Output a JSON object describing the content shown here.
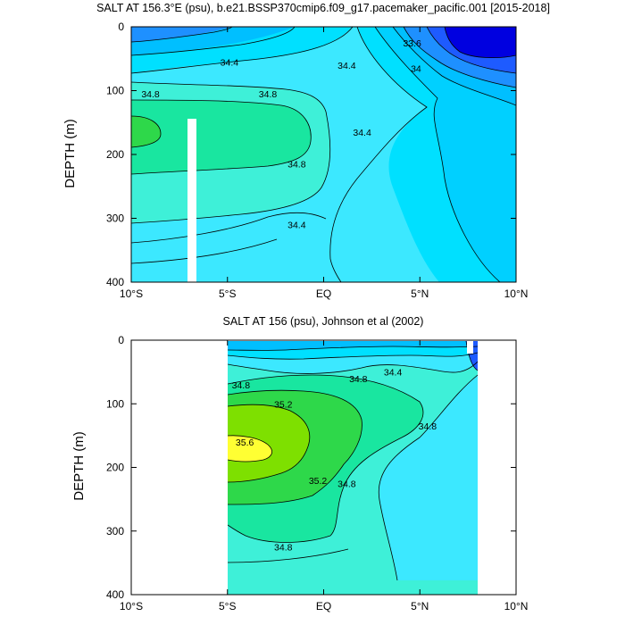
{
  "chart_data": [
    {
      "type": "contour",
      "title": "SALT AT 156.3°E (psu), b.e21.BSSP370cmip6.f09_g17.pacemaker_pacific.001 [2015-2018]",
      "ylabel": "DEPTH (m)",
      "xlim": [
        -10,
        10
      ],
      "ylim": [
        400,
        0
      ],
      "x_ticks": [
        -10,
        -5,
        0,
        5,
        10
      ],
      "x_tick_labels": [
        "10°S",
        "5°S",
        "EQ",
        "5°N",
        "10°N"
      ],
      "y_ticks": [
        0,
        100,
        200,
        300,
        400
      ],
      "y_tick_labels": [
        "0",
        "100",
        "200",
        "300",
        "400"
      ],
      "contour_interval": 0.2,
      "contour_labels": [
        {
          "text": "34.4",
          "lat": -4.9,
          "depth": 55
        },
        {
          "text": "34.4",
          "lat": 1.2,
          "depth": 60
        },
        {
          "text": "33.6",
          "lat": 4.6,
          "depth": 25
        },
        {
          "text": "34",
          "lat": 4.8,
          "depth": 65
        },
        {
          "text": "34.8",
          "lat": -9.0,
          "depth": 105
        },
        {
          "text": "34.8",
          "lat": -2.9,
          "depth": 105
        },
        {
          "text": "34.4",
          "lat": 2.0,
          "depth": 165
        },
        {
          "text": "34.8",
          "lat": -1.4,
          "depth": 215
        },
        {
          "text": "34.4",
          "lat": -1.4,
          "depth": 310
        }
      ],
      "regions": [
        {
          "level": 33.4,
          "color": "#0000e0"
        },
        {
          "level": 33.8,
          "color": "#1e5bff"
        },
        {
          "level": 34.0,
          "color": "#1e90ff"
        },
        {
          "level": 34.2,
          "color": "#00bfff"
        },
        {
          "level": 34.4,
          "color": "#00e0ff"
        },
        {
          "level": 34.6,
          "color": "#3ce8ff"
        },
        {
          "level": 34.8,
          "color": "#3ef0d8"
        },
        {
          "level": 35.0,
          "color": "#19e6a0"
        },
        {
          "level": 35.2,
          "color": "#2ed84a"
        }
      ],
      "missing_data": [
        {
          "lat_from": -6.7,
          "lat_to": -6.2,
          "depth_from": 145,
          "depth_to": 400
        }
      ]
    },
    {
      "type": "contour",
      "title": "SALT AT 156 (psu), Johnson et al (2002)",
      "ylabel": "DEPTH (m)",
      "xlim": [
        -10,
        10
      ],
      "ylim": [
        400,
        0
      ],
      "x_ticks": [
        -10,
        -5,
        0,
        5,
        10
      ],
      "x_tick_labels": [
        "10°S",
        "5°S",
        "EQ",
        "5°N",
        "10°N"
      ],
      "y_ticks": [
        0,
        100,
        200,
        300,
        400
      ],
      "y_tick_labels": [
        "0",
        "100",
        "200",
        "300",
        "400"
      ],
      "data_extent": {
        "lat_from": -5,
        "lat_to": 8,
        "depth_from": 5,
        "depth_to": 400
      },
      "contour_interval": 0.2,
      "contour_labels": [
        {
          "text": "34.8",
          "lat": -4.3,
          "depth": 70
        },
        {
          "text": "34.8",
          "lat": 1.8,
          "depth": 60
        },
        {
          "text": "34.4",
          "lat": 3.6,
          "depth": 50
        },
        {
          "text": "35.2",
          "lat": -2.1,
          "depth": 100
        },
        {
          "text": "34.8",
          "lat": 5.4,
          "depth": 135
        },
        {
          "text": "35.6",
          "lat": -4.1,
          "depth": 160
        },
        {
          "text": "35.2",
          "lat": -0.3,
          "depth": 220
        },
        {
          "text": "34.8",
          "lat": 1.2,
          "depth": 225
        },
        {
          "text": "34.8",
          "lat": -2.1,
          "depth": 325
        }
      ],
      "regions": [
        {
          "level": 33.8,
          "color": "#1e5bff"
        },
        {
          "level": 34.2,
          "color": "#00bfff"
        },
        {
          "level": 34.4,
          "color": "#00e0ff"
        },
        {
          "level": 34.6,
          "color": "#3ce8ff"
        },
        {
          "level": 34.8,
          "color": "#3ef0d8"
        },
        {
          "level": 35.0,
          "color": "#19e6a0"
        },
        {
          "level": 35.2,
          "color": "#2ed84a"
        },
        {
          "level": 35.4,
          "color": "#7ee000"
        },
        {
          "level": 35.6,
          "color": "#ffff33"
        }
      ]
    }
  ]
}
